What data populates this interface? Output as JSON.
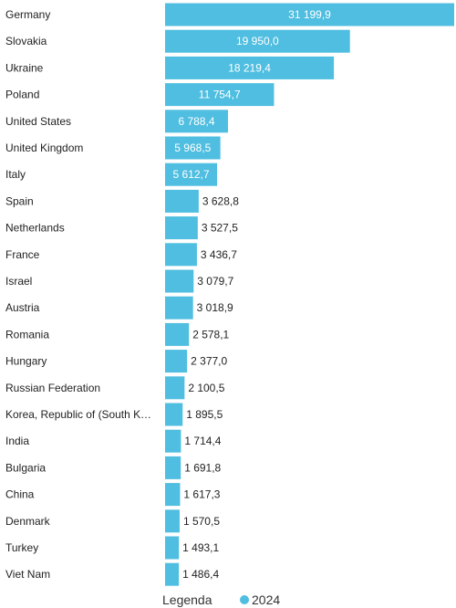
{
  "chart_data": {
    "type": "bar",
    "orientation": "horizontal",
    "categories": [
      "Germany",
      "Slovakia",
      "Ukraine",
      "Poland",
      "United States",
      "United Kingdom",
      "Italy",
      "Spain",
      "Netherlands",
      "France",
      "Israel",
      "Austria",
      "Romania",
      "Hungary",
      "Russian Federation",
      "Korea, Republic of (South K…",
      "India",
      "Bulgaria",
      "China",
      "Denmark",
      "Turkey",
      "Viet Nam"
    ],
    "series": [
      {
        "name": "2024",
        "values": [
          31199.9,
          19950.0,
          18219.4,
          11754.7,
          6788.4,
          5968.5,
          5612.7,
          3628.8,
          3527.5,
          3436.7,
          3079.7,
          3018.9,
          2578.1,
          2377.0,
          2100.5,
          1895.5,
          1714.4,
          1691.8,
          1617.3,
          1570.5,
          1493.1,
          1486.4
        ],
        "labels": [
          "31 199,9",
          "19 950,0",
          "18 219,4",
          "11 754,7",
          "6 788,4",
          "5 968,5",
          "5 612,7",
          "3 628,8",
          "3 527,5",
          "3 436,7",
          "3 079,7",
          "3 018,9",
          "2 578,1",
          "2 377,0",
          "2 100,5",
          "1 895,5",
          "1 714,4",
          "1 691,8",
          "1 617,3",
          "1 570,5",
          "1 493,1",
          "1 486,4"
        ]
      }
    ],
    "xlim": [
      0,
      31199.9
    ],
    "grid": false,
    "legend": {
      "title": "Legenda",
      "placement": "bottom"
    },
    "colors": {
      "bar": "#4fbee0",
      "label_inside": "#ffffff",
      "label_outside": "#222222"
    }
  }
}
